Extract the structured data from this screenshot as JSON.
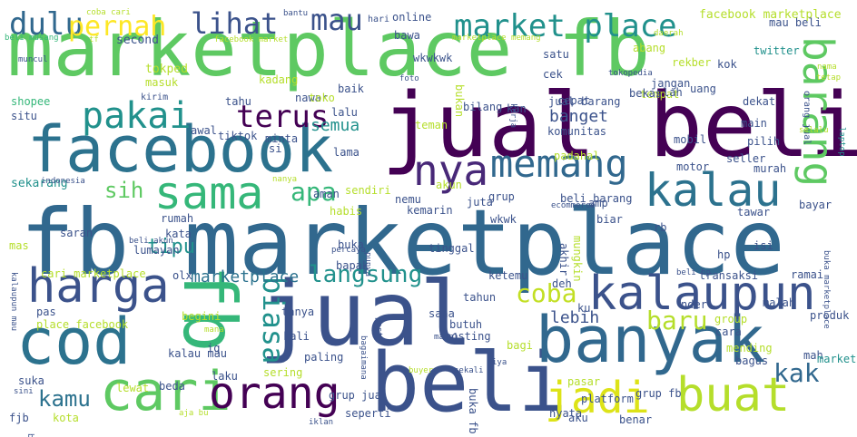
{
  "words": [
    {
      "text": "marketplace fb",
      "color": "#5ec962"
    },
    {
      "text": "fb marketplace",
      "color": "#31688e"
    },
    {
      "text": "jual beli",
      "color": "#440154"
    },
    {
      "text": "jual",
      "color": "#3b528b"
    },
    {
      "text": "beli",
      "color": "#3b528b"
    },
    {
      "text": "facebook",
      "color": "#2c728e"
    },
    {
      "text": "banyak",
      "color": "#31688e"
    },
    {
      "text": "cod",
      "color": "#2c728e"
    },
    {
      "text": "fb",
      "color": "#35b779"
    },
    {
      "text": "cari",
      "color": "#5ec962"
    },
    {
      "text": "buat",
      "color": "#b5de2b"
    },
    {
      "text": "jadi",
      "color": "#dde318"
    },
    {
      "text": "orang",
      "color": "#440154"
    },
    {
      "text": "kalaupun",
      "color": "#3b528b"
    },
    {
      "text": "kalau",
      "color": "#2c728e"
    },
    {
      "text": "harga",
      "color": "#3b528b"
    },
    {
      "text": "sama",
      "color": "#35b779"
    },
    {
      "text": "nya",
      "color": "#482878"
    },
    {
      "text": "memang",
      "color": "#31688e"
    },
    {
      "text": "barang",
      "color": "#5ec962"
    },
    {
      "text": "market place",
      "color": "#21918c"
    },
    {
      "text": "pakai",
      "color": "#21918c"
    },
    {
      "text": "terus",
      "color": "#440154"
    },
    {
      "text": "dulu",
      "color": "#31688e"
    },
    {
      "text": "pernah",
      "color": "#fde725"
    },
    {
      "text": "lihat",
      "color": "#3b528b"
    },
    {
      "text": "mau",
      "color": "#3b528b"
    },
    {
      "text": "langsung",
      "color": "#21918c"
    },
    {
      "text": "biasa",
      "color": "#21918c"
    },
    {
      "text": "coba",
      "color": "#c2df23"
    },
    {
      "text": "apa",
      "color": "#35b779"
    },
    {
      "text": "sih",
      "color": "#5ec962"
    },
    {
      "text": "baru",
      "color": "#b5de2b"
    },
    {
      "text": "kak",
      "color": "#31688e"
    },
    {
      "text": "kamu",
      "color": "#2c728e"
    },
    {
      "text": "tipu",
      "color": "#21918c"
    },
    {
      "text": "marketplace",
      "color": "#2c728e"
    },
    {
      "text": "banget",
      "color": "#3b528b"
    },
    {
      "text": "semua",
      "color": "#21918c"
    },
    {
      "text": "lebih",
      "color": "#3b528b"
    },
    {
      "text": "facebook marketplace",
      "color": "#b5de2b"
    },
    {
      "text": "beli musang",
      "color": "#35b779"
    },
    {
      "text": "second",
      "color": "#3b528b"
    },
    {
      "text": "facebook market",
      "color": "#b5de2b"
    },
    {
      "text": "marketplace memang",
      "color": "#b5de2b"
    },
    {
      "text": "online",
      "color": "#3b528b"
    },
    {
      "text": "hari",
      "color": "#3b528b"
    },
    {
      "text": "bantu",
      "color": "#3b528b"
    },
    {
      "text": "coba cari",
      "color": "#b5de2b"
    },
    {
      "text": "tf",
      "color": "#b5de2b"
    },
    {
      "text": "muncul",
      "color": "#3b528b"
    },
    {
      "text": "shopee",
      "color": "#35b779"
    },
    {
      "text": "situ",
      "color": "#3b528b"
    },
    {
      "text": "kirim",
      "color": "#3b528b"
    },
    {
      "text": "tokped",
      "color": "#b5de2b"
    },
    {
      "text": "masuk",
      "color": "#b5de2b"
    },
    {
      "text": "kadang",
      "color": "#b5de2b"
    },
    {
      "text": "baik",
      "color": "#3b528b"
    },
    {
      "text": "foto",
      "color": "#3b528b"
    },
    {
      "text": "bawa",
      "color": "#3b528b"
    },
    {
      "text": "wkwkwk",
      "color": "#3b528b"
    },
    {
      "text": "satu",
      "color": "#3b528b"
    },
    {
      "text": "cek",
      "color": "#3b528b"
    },
    {
      "text": "abang",
      "color": "#b5de2b"
    },
    {
      "text": "rekber",
      "color": "#b5de2b"
    },
    {
      "text": "daerah",
      "color": "#b5de2b"
    },
    {
      "text": "jangan",
      "color": "#3b528b"
    },
    {
      "text": "tempat",
      "color": "#b5de2b"
    },
    {
      "text": "uang",
      "color": "#3b528b"
    },
    {
      "text": "kok",
      "color": "#3b528b"
    },
    {
      "text": "mau beli",
      "color": "#3b528b"
    },
    {
      "text": "twitter",
      "color": "#21918c"
    },
    {
      "text": "tetap",
      "color": "#b5de2b"
    },
    {
      "text": "nama",
      "color": "#b5de2b"
    },
    {
      "text": "tokopedia",
      "color": "#3b528b"
    },
    {
      "text": "orang jual",
      "color": "#3b528b"
    },
    {
      "text": "bekas",
      "color": "#3b528b"
    },
    {
      "text": "lah",
      "color": "#3b528b"
    },
    {
      "text": "cepat",
      "color": "#3b528b"
    },
    {
      "text": "jual barang",
      "color": "#3b528b"
    },
    {
      "text": "dekat",
      "color": "#3b528b"
    },
    {
      "text": "main",
      "color": "#3b528b"
    },
    {
      "text": "pilih",
      "color": "#3b528b"
    },
    {
      "text": "selalu",
      "color": "#b5de2b"
    },
    {
      "text": "laptop",
      "color": "#21918c"
    },
    {
      "text": "tahu",
      "color": "#3b528b"
    },
    {
      "text": "nawar",
      "color": "#3b528b"
    },
    {
      "text": "toko",
      "color": "#b5de2b"
    },
    {
      "text": "lalu",
      "color": "#3b528b"
    },
    {
      "text": "bukan",
      "color": "#b5de2b"
    },
    {
      "text": "teman",
      "color": "#b5de2b"
    },
    {
      "text": "bilang",
      "color": "#3b528b"
    },
    {
      "text": "kan",
      "color": "#3b528b"
    },
    {
      "text": "kerja",
      "color": "#3b528b"
    },
    {
      "text": "komunitas",
      "color": "#3b528b"
    },
    {
      "text": "padahal",
      "color": "#b5de2b"
    },
    {
      "text": "mobil",
      "color": "#3b528b"
    },
    {
      "text": "seller",
      "color": "#3b528b"
    },
    {
      "text": "awal",
      "color": "#3b528b"
    },
    {
      "text": "tiktok",
      "color": "#3b528b"
    },
    {
      "text": "minta",
      "color": "#3b528b"
    },
    {
      "text": "si",
      "color": "#3b528b"
    },
    {
      "text": "lama",
      "color": "#3b528b"
    },
    {
      "text": "aman",
      "color": "#3b528b"
    },
    {
      "text": "motor",
      "color": "#3b528b"
    },
    {
      "text": "murah",
      "color": "#3b528b"
    },
    {
      "text": "bayar",
      "color": "#3b528b"
    },
    {
      "text": "sekarang",
      "color": "#21918c"
    },
    {
      "text": "indonesia",
      "color": "#3b528b"
    },
    {
      "text": "nanya",
      "color": "#b5de2b"
    },
    {
      "text": "sendiri",
      "color": "#b5de2b"
    },
    {
      "text": "akun",
      "color": "#b5de2b"
    },
    {
      "text": "grup",
      "color": "#3b528b"
    },
    {
      "text": "beli barang",
      "color": "#3b528b"
    },
    {
      "text": "amp",
      "color": "#3b528b"
    },
    {
      "text": "ecommerce",
      "color": "#3b528b"
    },
    {
      "text": "tawar",
      "color": "#3b528b"
    },
    {
      "text": "habis",
      "color": "#b5de2b"
    },
    {
      "text": "nemu",
      "color": "#3b528b"
    },
    {
      "text": "kemarin",
      "color": "#3b528b"
    },
    {
      "text": "juta",
      "color": "#3b528b"
    },
    {
      "text": "wkwk",
      "color": "#3b528b"
    },
    {
      "text": "rumah",
      "color": "#3b528b"
    },
    {
      "text": "saran",
      "color": "#3b528b"
    },
    {
      "text": "beli akun",
      "color": "#3b528b"
    },
    {
      "text": "kata",
      "color": "#3b528b"
    },
    {
      "text": "lumayan",
      "color": "#3b528b"
    },
    {
      "text": "mas",
      "color": "#b5de2b"
    },
    {
      "text": "percaya",
      "color": "#3b528b"
    },
    {
      "text": "buka",
      "color": "#3b528b"
    },
    {
      "text": "punya",
      "color": "#3b528b"
    },
    {
      "text": "tinggal",
      "color": "#3b528b"
    },
    {
      "text": "bapak",
      "color": "#3b528b"
    },
    {
      "text": "mungkin",
      "color": "#b5de2b"
    },
    {
      "text": "akhir",
      "color": "#3b528b"
    },
    {
      "text": "biar",
      "color": "#3b528b"
    },
    {
      "text": "rb",
      "color": "#3b528b"
    },
    {
      "text": "hp",
      "color": "#3b528b"
    },
    {
      "text": "isi",
      "color": "#3b528b"
    },
    {
      "text": "buka marketplace",
      "color": "#3b528b"
    },
    {
      "text": "transaksi",
      "color": "#3b528b"
    },
    {
      "text": "ramai",
      "color": "#3b528b"
    },
    {
      "text": "beli hp",
      "color": "#3b528b"
    },
    {
      "text": "cari marketplace",
      "color": "#b5de2b"
    },
    {
      "text": "ketemu",
      "color": "#3b528b"
    },
    {
      "text": "deh",
      "color": "#3b528b"
    },
    {
      "text": "tahun",
      "color": "#3b528b"
    },
    {
      "text": "olx",
      "color": "#3b528b"
    },
    {
      "text": "kalaupun mau",
      "color": "#3b528b"
    },
    {
      "text": "place facebook",
      "color": "#b5de2b"
    },
    {
      "text": "pas",
      "color": "#3b528b"
    },
    {
      "text": "begini",
      "color": "#b5de2b"
    },
    {
      "text": "tanya",
      "color": "#3b528b"
    },
    {
      "text": "sana",
      "color": "#3b528b"
    },
    {
      "text": "ku",
      "color": "#3b528b"
    },
    {
      "text": "nder",
      "color": "#3b528b"
    },
    {
      "text": "group",
      "color": "#b5de2b"
    },
    {
      "text": "malah",
      "color": "#3b528b"
    },
    {
      "text": "produk",
      "color": "#3b528b"
    },
    {
      "text": "mana",
      "color": "#b5de2b"
    },
    {
      "text": "ig",
      "color": "#3b528b"
    },
    {
      "text": "kali",
      "color": "#3b528b"
    },
    {
      "text": "bagaimana",
      "color": "#3b528b"
    },
    {
      "text": "post",
      "color": "#3b528b"
    },
    {
      "text": "butuh",
      "color": "#3b528b"
    },
    {
      "text": "posting",
      "color": "#3b528b"
    },
    {
      "text": "mahal",
      "color": "#3b528b"
    },
    {
      "text": "bagi",
      "color": "#b5de2b"
    },
    {
      "text": "cara",
      "color": "#3b528b"
    },
    {
      "text": "mending",
      "color": "#b5de2b"
    },
    {
      "text": "bagus",
      "color": "#3b528b"
    },
    {
      "text": "mah",
      "color": "#3b528b"
    },
    {
      "text": "marketplace facebook",
      "color": "#21918c"
    },
    {
      "text": "paling",
      "color": "#3b528b"
    },
    {
      "text": "sering",
      "color": "#b5de2b"
    },
    {
      "text": "buyer",
      "color": "#b5de2b"
    },
    {
      "text": "sekali",
      "color": "#3b528b"
    },
    {
      "text": "kalau mau",
      "color": "#3b528b"
    },
    {
      "text": "laku",
      "color": "#3b528b"
    },
    {
      "text": "suka",
      "color": "#3b528b"
    },
    {
      "text": "sini",
      "color": "#3b528b"
    },
    {
      "text": "lewat",
      "color": "#b5de2b"
    },
    {
      "text": "beda",
      "color": "#3b528b"
    },
    {
      "text": "fjb",
      "color": "#3b528b"
    },
    {
      "text": "kota",
      "color": "#b5de2b"
    },
    {
      "text": "bikin",
      "color": "#3b528b"
    },
    {
      "text": "aja bu",
      "color": "#b5de2b"
    },
    {
      "text": "iya",
      "color": "#3b528b"
    },
    {
      "text": "grup jual",
      "color": "#3b528b"
    },
    {
      "text": "buka fb",
      "color": "#3b528b"
    },
    {
      "text": "seperti",
      "color": "#3b528b"
    },
    {
      "text": "nyata",
      "color": "#3b528b"
    },
    {
      "text": "iklan",
      "color": "#3b528b"
    },
    {
      "text": "pasar",
      "color": "#b5de2b"
    },
    {
      "text": "grup fb",
      "color": "#3b528b"
    },
    {
      "text": "platform",
      "color": "#3b528b"
    },
    {
      "text": "aku",
      "color": "#3b528b"
    },
    {
      "text": "benar",
      "color": "#3b528b"
    }
  ]
}
